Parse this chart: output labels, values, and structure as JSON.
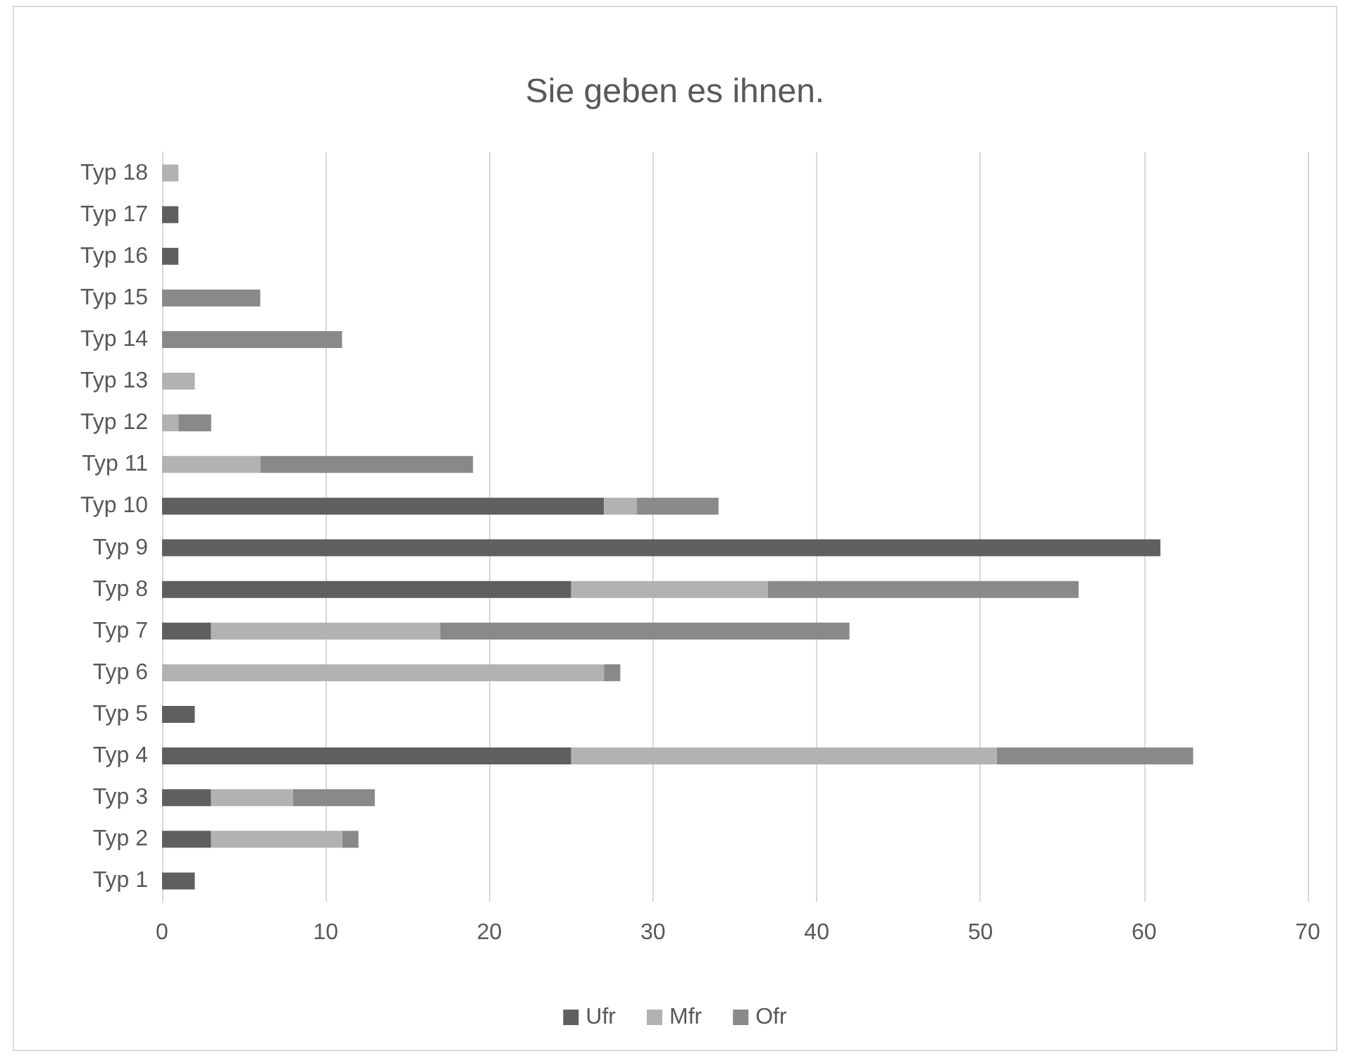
{
  "chart_data": {
    "type": "bar",
    "orientation": "horizontal",
    "stacked": true,
    "title": "Sie geben es ihnen.",
    "categories": [
      "Typ 18",
      "Typ 17",
      "Typ 16",
      "Typ 15",
      "Typ 14",
      "Typ 13",
      "Typ 12",
      "Typ 11",
      "Typ 10",
      "Typ 9",
      "Typ 8",
      "Typ 7",
      "Typ 6",
      "Typ 5",
      "Typ 4",
      "Typ 3",
      "Typ 2",
      "Typ 1"
    ],
    "series": [
      {
        "name": "Ufr",
        "color": "#5f5f5f",
        "values": [
          0,
          1,
          1,
          0,
          0,
          0,
          0,
          0,
          27,
          61,
          25,
          3,
          0,
          2,
          25,
          3,
          3,
          2
        ]
      },
      {
        "name": "Mfr",
        "color": "#b2b2b2",
        "values": [
          1,
          0,
          0,
          0,
          0,
          2,
          1,
          6,
          2,
          0,
          12,
          14,
          27,
          0,
          26,
          5,
          8,
          0
        ]
      },
      {
        "name": "Ofr",
        "color": "#898989",
        "values": [
          0,
          0,
          0,
          6,
          11,
          0,
          2,
          13,
          5,
          0,
          19,
          25,
          1,
          0,
          12,
          5,
          1,
          0
        ]
      }
    ],
    "xlim": [
      0,
      70
    ],
    "xticks": [
      0,
      10,
      20,
      30,
      40,
      50,
      60,
      70
    ],
    "grid": "x",
    "legend": "bottom"
  }
}
